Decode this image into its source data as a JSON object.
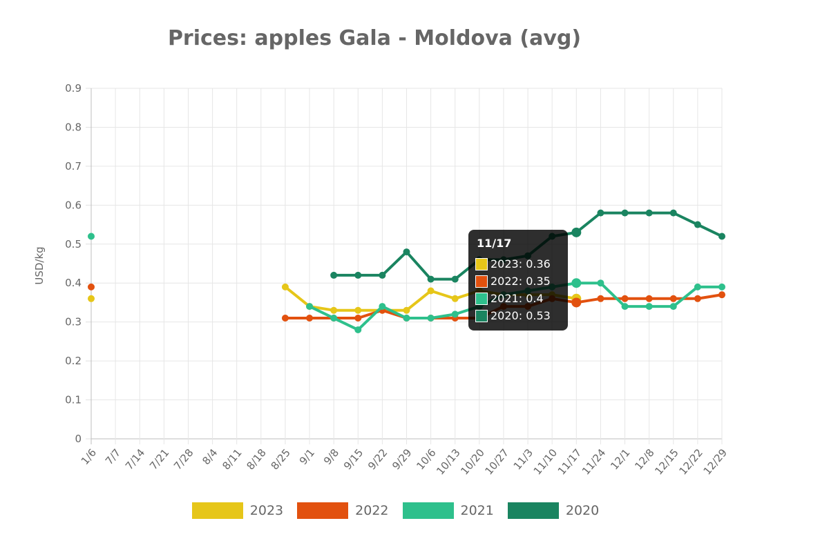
{
  "chart_data": {
    "type": "line",
    "title": "Prices: apples Gala - Moldova (avg)",
    "ylabel": "USD/kg",
    "xlabel": "",
    "ylim": [
      0,
      0.9
    ],
    "yticks": [
      "0",
      "0.1",
      "0.2",
      "0.3",
      "0.4",
      "0.5",
      "0.6",
      "0.7",
      "0.8",
      "0.9"
    ],
    "grid": true,
    "legend_position": "bottom",
    "categories": [
      "1/6",
      "7/7",
      "7/14",
      "7/21",
      "7/28",
      "8/4",
      "8/11",
      "8/18",
      "8/25",
      "9/1",
      "9/8",
      "9/15",
      "9/22",
      "9/29",
      "10/6",
      "10/13",
      "10/20",
      "10/27",
      "11/3",
      "11/10",
      "11/17",
      "11/24",
      "12/1",
      "12/8",
      "12/15",
      "12/22",
      "12/29"
    ],
    "series": [
      {
        "name": "2023",
        "color": "#e6c619",
        "values": [
          0.36,
          null,
          null,
          null,
          null,
          null,
          null,
          null,
          0.39,
          0.34,
          0.33,
          0.33,
          0.33,
          0.33,
          0.38,
          0.36,
          0.38,
          0.37,
          0.37,
          0.37,
          0.36,
          null,
          null,
          null,
          null,
          null,
          null
        ]
      },
      {
        "name": "2022",
        "color": "#e2510f",
        "values": [
          0.39,
          null,
          null,
          null,
          null,
          null,
          null,
          null,
          0.31,
          0.31,
          0.31,
          0.31,
          0.33,
          0.31,
          0.31,
          0.31,
          0.31,
          0.34,
          0.34,
          0.36,
          0.35,
          0.36,
          0.36,
          0.36,
          0.36,
          0.36,
          0.37
        ]
      },
      {
        "name": "2021",
        "color": "#2ec08c",
        "values": [
          0.52,
          null,
          null,
          null,
          null,
          null,
          null,
          null,
          null,
          0.34,
          0.31,
          0.28,
          0.34,
          0.31,
          0.31,
          0.32,
          0.34,
          0.37,
          0.38,
          0.39,
          0.4,
          0.4,
          0.34,
          0.34,
          0.34,
          0.39,
          0.39
        ]
      },
      {
        "name": "2020",
        "color": "#1a8460",
        "values": [
          null,
          null,
          null,
          null,
          null,
          null,
          null,
          null,
          null,
          null,
          0.42,
          0.42,
          0.42,
          0.48,
          0.41,
          0.41,
          0.46,
          0.46,
          0.47,
          0.52,
          0.53,
          0.58,
          0.58,
          0.58,
          0.58,
          0.55,
          0.52
        ]
      }
    ]
  },
  "tooltip": {
    "title": "11/17",
    "rows": [
      "2023: 0.36",
      "2022: 0.35",
      "2021: 0.4",
      "2020: 0.53"
    ],
    "colors": [
      "#e6c619",
      "#e2510f",
      "#2ec08c",
      "#1a8460"
    ]
  }
}
